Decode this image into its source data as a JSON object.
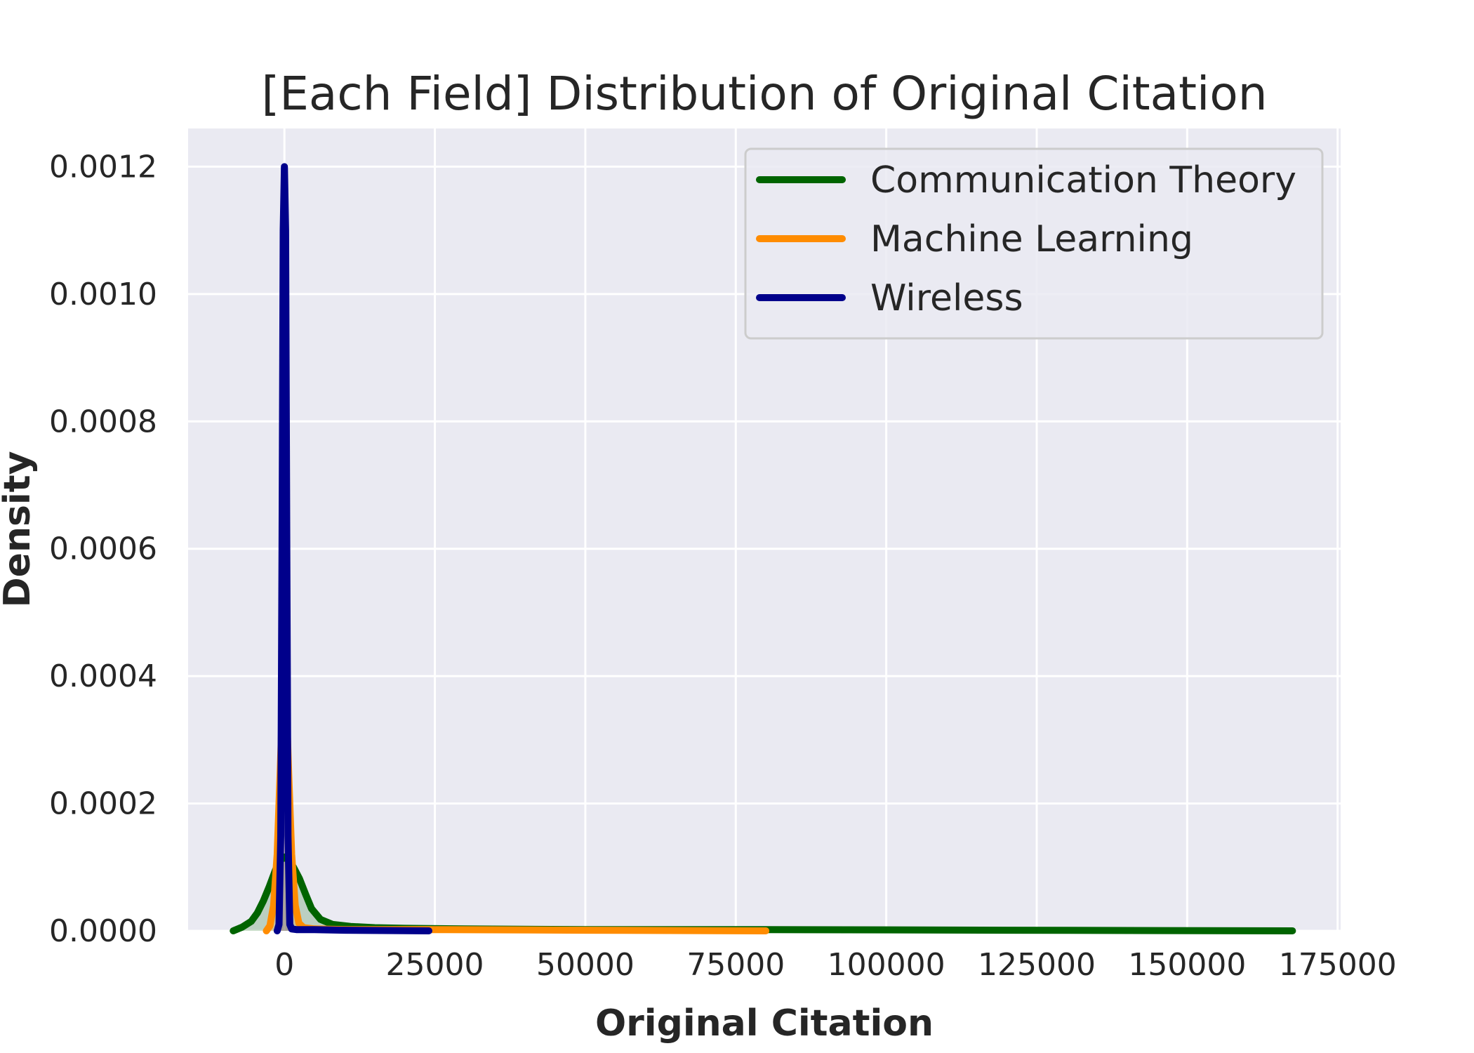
{
  "chart_data": {
    "type": "line",
    "title": "[Each Field] Distribution of Original Citation",
    "xlabel": "Original Citation",
    "ylabel": "Density",
    "xlim": [
      -16000,
      175500
    ],
    "ylim": [
      0,
      0.00126
    ],
    "xticks": [
      0,
      25000,
      50000,
      75000,
      100000,
      125000,
      150000,
      175000
    ],
    "yticks": [
      0.0,
      0.0002,
      0.0004,
      0.0006,
      0.0008,
      0.001,
      0.0012
    ],
    "xtick_labels": [
      "0",
      "25000",
      "50000",
      "75000",
      "100000",
      "125000",
      "150000",
      "175000"
    ],
    "ytick_labels": [
      "0.0000",
      "0.0002",
      "0.0004",
      "0.0006",
      "0.0008",
      "0.0010",
      "0.0012"
    ],
    "grid": true,
    "legend_position": "top-right",
    "series": [
      {
        "name": "Communication Theory",
        "color": "#006400",
        "fill": true,
        "x": [
          -8500,
          -7000,
          -5500,
          -4500,
          -3500,
          -2500,
          -1500,
          -800,
          0,
          800,
          1500,
          2500,
          3500,
          4500,
          6000,
          8000,
          11000,
          15000,
          20000,
          30000,
          50000,
          80000,
          120000,
          167500
        ],
        "y": [
          0.0,
          6e-06,
          1.5e-05,
          2.8e-05,
          4.7e-05,
          7e-05,
          9.5e-05,
          0.00011,
          0.000116,
          0.00011,
          0.0001,
          8.2e-05,
          5.8e-05,
          3.5e-05,
          1.8e-05,
          1e-05,
          7e-06,
          5e-06,
          4e-06,
          3e-06,
          2e-06,
          2e-06,
          1e-06,
          0.0
        ]
      },
      {
        "name": "Machine Learning",
        "color": "#FF8C00",
        "fill": true,
        "x": [
          -3000,
          -2400,
          -1800,
          -1200,
          -700,
          -300,
          0,
          300,
          700,
          1200,
          1800,
          2400,
          3200,
          5000,
          10000,
          25000,
          50000,
          80000
        ],
        "y": [
          0.0,
          8e-06,
          4e-05,
          0.00012,
          0.00025,
          0.00036,
          0.000385,
          0.00036,
          0.00025,
          0.00012,
          4e-05,
          1.2e-05,
          5e-06,
          3e-06,
          2e-06,
          2e-06,
          1e-06,
          0.0
        ]
      },
      {
        "name": "Wireless",
        "color": "#00008B",
        "fill": true,
        "x": [
          -1200,
          -900,
          -600,
          -400,
          -200,
          0,
          200,
          400,
          600,
          900,
          1200,
          2000,
          5000,
          10000,
          24000
        ],
        "y": [
          0.0,
          1e-05,
          0.00015,
          0.0006,
          0.0011,
          0.0012,
          0.0011,
          0.0006,
          0.00015,
          1e-05,
          3e-06,
          2e-06,
          2e-06,
          1e-06,
          0.0
        ]
      }
    ]
  }
}
